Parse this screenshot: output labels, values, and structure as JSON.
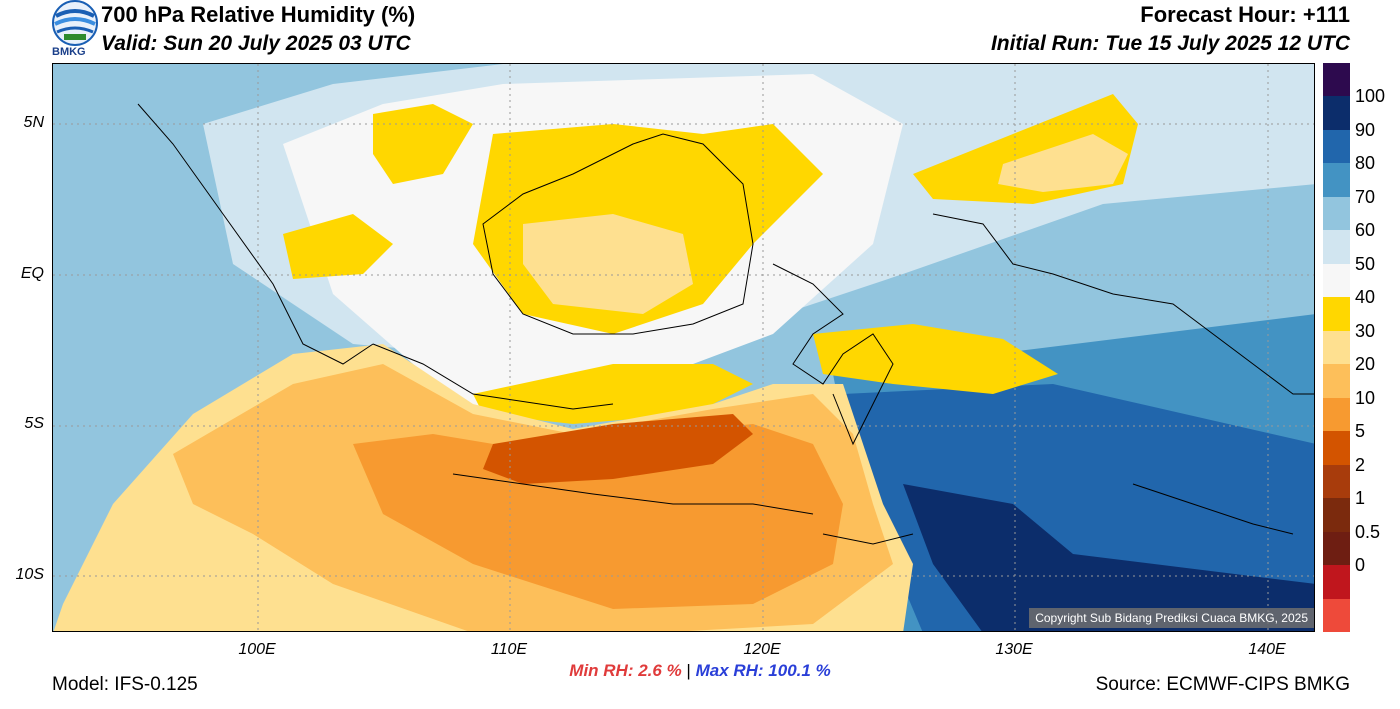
{
  "header": {
    "title": "700 hPa Relative Humidity (%)",
    "valid": "Valid: Sun 20 July 2025 03 UTC",
    "forecast_hour": "Forecast Hour: +111",
    "initial_run": "Initial Run: Tue 15 July 2025 12 UTC",
    "logo_text": "BMKG"
  },
  "axes": {
    "lat_labels": [
      "5N",
      "EQ",
      "5S",
      "10S"
    ],
    "lon_labels": [
      "100E",
      "110E",
      "120E",
      "130E",
      "140E"
    ]
  },
  "stats": {
    "min": "Min RH:   2.6 %",
    "separator": "|",
    "max": "Max RH: 100.1 %"
  },
  "footer": {
    "model": "Model: IFS-0.125",
    "source": "Source: ECMWF-CIPS BMKG",
    "copyright": "Copyright Sub Bidang Prediksi Cuaca BMKG, 2025"
  },
  "colorbar": {
    "labels": [
      "100",
      "90",
      "80",
      "70",
      "60",
      "50",
      "40",
      "30",
      "20",
      "10",
      "5",
      "2",
      "1",
      "0.5",
      "0"
    ],
    "colors": [
      "#2d0a4e",
      "#0c2d6b",
      "#2166ac",
      "#4393c3",
      "#92c5de",
      "#d1e5f0",
      "#f7f7f7",
      "#ffd700",
      "#fee090",
      "#fdbf5a",
      "#f79a30",
      "#d35400",
      "#a83c0c",
      "#7b2a0d",
      "#6e1e12",
      "#c0161d",
      "#ee4a3a"
    ]
  },
  "map_colors": {
    "ocean_dry": "#fee090",
    "dry_mid": "#fdbf5a",
    "dry_strong": "#f79a30",
    "dry_core": "#d35400",
    "yellow": "#ffd700",
    "white": "#f7f7f7",
    "pale_blue": "#d1e5f0",
    "light_blue": "#92c5de",
    "mid_blue": "#4393c3",
    "blue": "#2166ac",
    "dark_blue": "#0c2d6b"
  }
}
